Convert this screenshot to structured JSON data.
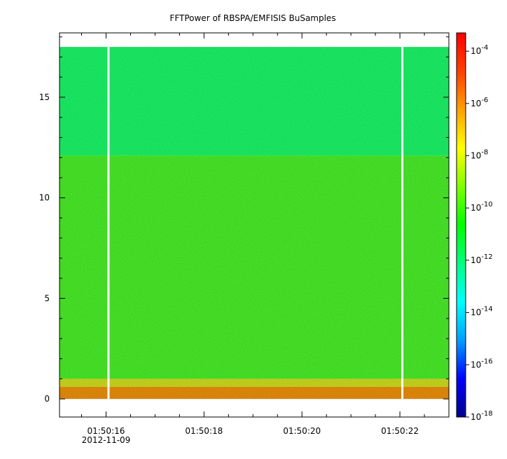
{
  "chart_data": {
    "type": "heatmap",
    "title": "FFTPower of RBSPA/EMFISIS  BuSamples",
    "xlabel": "",
    "ylabel": "",
    "x_range_seconds": [
      15.05,
      23.0
    ],
    "x_ticks": [
      {
        "label": "01:50:16",
        "sub": "2012-11-09",
        "sec": 16
      },
      {
        "label": "01:50:18",
        "sub": "",
        "sec": 18
      },
      {
        "label": "01:50:20",
        "sub": "",
        "sec": 20
      },
      {
        "label": "01:50:22",
        "sub": "",
        "sec": 22
      }
    ],
    "x_minor_step": 0.5,
    "ylim": [
      -0.9,
      18.2
    ],
    "y_ticks": [
      0,
      5,
      10,
      15
    ],
    "y_minor_step": 1,
    "data_top_freq": 17.5,
    "colorbar": {
      "scale": "log",
      "range_exp": [
        -18,
        -3.3
      ],
      "tick_exps": [
        -18,
        -16,
        -14,
        -12,
        -10,
        -8,
        -6,
        -4
      ],
      "colors": [
        "#00008c",
        "#0000ff",
        "#00a0ff",
        "#00ffff",
        "#00ff80",
        "#00ff00",
        "#80ff00",
        "#ffff00",
        "#ffa000",
        "#ff4000",
        "#ff0000"
      ]
    },
    "gaps_seconds": [
      16.05,
      22.05
    ],
    "bands": [
      {
        "f0": 12.1,
        "f1": 17.5,
        "log_power": -12.0,
        "color": "#1cfc6a"
      },
      {
        "f0": 1.0,
        "f1": 12.1,
        "log_power": -10.5,
        "color": "#4cf42a"
      },
      {
        "f0": 0.6,
        "f1": 1.0,
        "log_power": -9.0,
        "color": "#d4e31f"
      },
      {
        "f0": 0.0,
        "f1": 0.6,
        "log_power": -7.5,
        "color": "#f2930b"
      }
    ]
  }
}
